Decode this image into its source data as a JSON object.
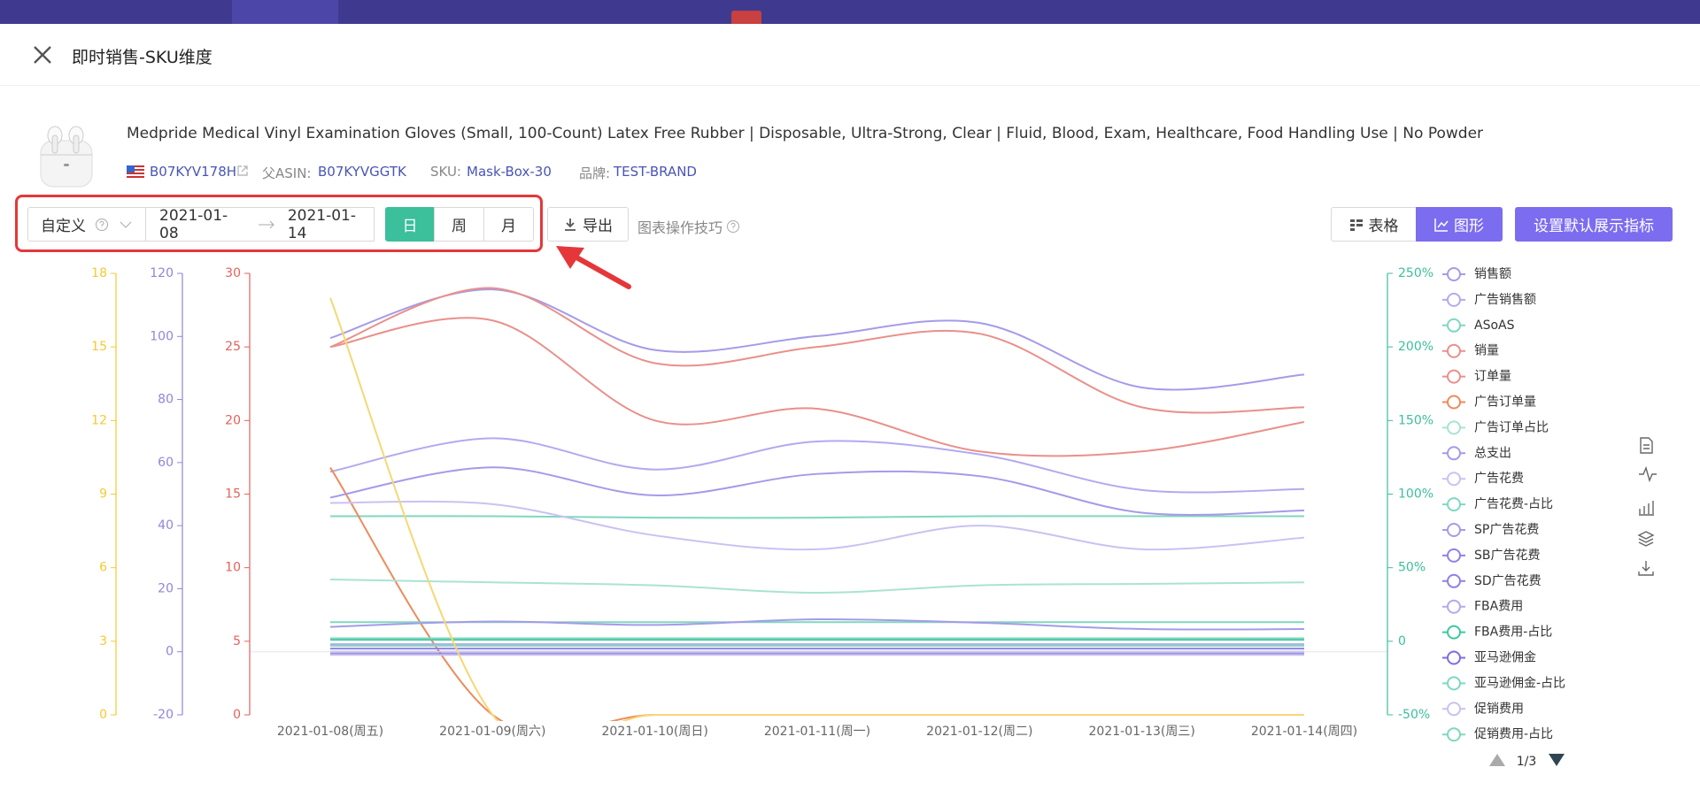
{
  "header": {
    "title": "即时销售-SKU维度"
  },
  "product": {
    "title": "Medpride Medical Vinyl Examination Gloves (Small, 100-Count) Latex Free Rubber | Disposable, Ultra-Strong, Clear | Fluid, Blood, Exam, Healthcare, Food Handling Use | No Powder",
    "asin": "B07KYV178H",
    "parent_asin_label": "父ASIN:",
    "parent_asin": "B07KYVGGTK",
    "sku_label": "SKU:",
    "sku": "Mask-Box-30",
    "brand_label": "品牌:",
    "brand": "TEST-BRAND"
  },
  "toolbar": {
    "range_type": "自定义",
    "start_date": "2021-01-08",
    "end_date": "2021-01-14",
    "granularity": [
      "日",
      "周",
      "月"
    ],
    "export": "导出",
    "tips": "图表操作技巧",
    "view_table": "表格",
    "view_chart": "图形",
    "set_default": "设置默认展示指标"
  },
  "chart_data": {
    "type": "line",
    "x": [
      "2021-01-08(周五)",
      "2021-01-09(周六)",
      "2021-01-10(周日)",
      "2021-01-11(周一)",
      "2021-01-12(周二)",
      "2021-01-13(周三)",
      "2021-01-14(周四)"
    ],
    "axes": [
      {
        "side": "left",
        "color": "#f5c932",
        "lim": [
          0,
          18
        ],
        "ticks": [
          0,
          3,
          6,
          9,
          12,
          15,
          18
        ]
      },
      {
        "side": "left",
        "color": "#8f86d9",
        "lim": [
          -20,
          120
        ],
        "ticks": [
          -20,
          0,
          20,
          40,
          60,
          80,
          100,
          120
        ]
      },
      {
        "side": "left",
        "color": "#e3625b",
        "lim": [
          0,
          30
        ],
        "ticks": [
          0,
          5,
          10,
          15,
          20,
          25,
          30
        ]
      },
      {
        "side": "right",
        "color": "#3cbf9b",
        "lim": [
          -50,
          250
        ],
        "ticks": [
          {
            "value": -50,
            "label": "-50%"
          },
          {
            "value": 0,
            "label": "0"
          },
          {
            "value": 50,
            "label": "50%"
          },
          {
            "value": 100,
            "label": "100%"
          },
          {
            "value": 150,
            "label": "150%"
          },
          {
            "value": 200,
            "label": "200%"
          },
          {
            "value": 250,
            "label": "250%"
          }
        ]
      }
    ],
    "series": [
      {
        "name": "销售额",
        "color": "#a59be8",
        "axis": 1,
        "values": [
          99.5,
          114.9,
          95.7,
          100.1,
          104.3,
          83.8,
          87.9
        ]
      },
      {
        "name": "广告销售额",
        "color": "#b3aaee",
        "axis": 1,
        "values": [
          57.1,
          67.7,
          57.8,
          66.7,
          62.6,
          51.3,
          51.6
        ]
      },
      {
        "name": "ASoAS",
        "color": "#7fd8bf",
        "axis": 3,
        "values": [
          85,
          85,
          84,
          84,
          85,
          85,
          85
        ]
      },
      {
        "name": "销量",
        "color": "#e9908b",
        "axis": 2,
        "values": [
          25,
          29,
          23.9,
          25,
          25.9,
          20.9,
          20.9
        ]
      },
      {
        "name": "订单量",
        "color": "#e9908b",
        "axis": 2,
        "values": [
          25,
          26.8,
          20,
          20.8,
          17.9,
          17.9,
          19.9
        ]
      },
      {
        "name": "广告订单量",
        "color": "#ee8a5a",
        "axis": 2,
        "values": [
          16.8,
          0,
          0,
          0,
          0,
          0,
          0
        ]
      },
      {
        "name": "广告订单占比",
        "color": "#a9e3d3",
        "axis": 3,
        "values": [
          42,
          40,
          38,
          33,
          38,
          39,
          40
        ]
      },
      {
        "name": "总支出",
        "color": "#a59be8",
        "axis": 1,
        "values": [
          48.9,
          58.5,
          49.6,
          56.4,
          55.7,
          44.1,
          44.8
        ]
      },
      {
        "name": "广告花费",
        "color": "#c9c2f2",
        "axis": 1,
        "values": [
          47.2,
          46.8,
          36.9,
          32.5,
          40,
          32.5,
          36.2
        ]
      },
      {
        "name": "广告花费-占比",
        "color": "#7fd8bf",
        "axis": 3,
        "values": [
          13,
          13,
          13,
          13,
          13,
          13,
          13
        ]
      },
      {
        "name": "SP广告花费",
        "color": "#a59be8",
        "axis": 1,
        "values": [
          7.9,
          9.6,
          8.5,
          10.3,
          9.2,
          7.2,
          7.2
        ]
      },
      {
        "name": "SB广告花费",
        "color": "#8e82e3",
        "axis": 1,
        "values": [
          0,
          0,
          0,
          0,
          0,
          0,
          0
        ]
      },
      {
        "name": "SD广告花费",
        "color": "#8e82e3",
        "axis": 1,
        "values": [
          1,
          1,
          1,
          1,
          1,
          1,
          1
        ]
      },
      {
        "name": "FBA费用",
        "color": "#b3aaee",
        "axis": 1,
        "values": [
          2.4,
          2.4,
          2.4,
          2.4,
          2.4,
          2.4,
          2.4
        ]
      },
      {
        "name": "FBA费用-占比",
        "color": "#3fc79f",
        "axis": 3,
        "values": [
          1,
          1,
          1,
          1,
          1,
          1,
          1
        ]
      },
      {
        "name": "亚马逊佣金",
        "color": "#7b6ee0",
        "axis": 1,
        "values": [
          -0.7,
          -0.7,
          -0.7,
          -0.7,
          -0.7,
          -0.7,
          -0.7
        ]
      },
      {
        "name": "亚马逊佣金-占比",
        "color": "#7fd8bf",
        "axis": 3,
        "values": [
          2,
          2,
          2,
          2,
          2,
          2,
          2
        ]
      },
      {
        "name": "促销费用",
        "color": "#c9c2f2",
        "axis": 1,
        "values": [
          -1,
          -1,
          -1,
          -1,
          -1,
          -1,
          -1
        ]
      },
      {
        "name": "促销费用-占比",
        "color": "#7fd8bf",
        "axis": 3,
        "values": [
          -3,
          -3,
          -3,
          -3,
          -3,
          -3,
          -3
        ]
      },
      {
        "color": "#f7d774",
        "axis": 0,
        "values": [
          17,
          0,
          0,
          0,
          0,
          0,
          0
        ]
      }
    ]
  },
  "legend_pager": "1/3"
}
